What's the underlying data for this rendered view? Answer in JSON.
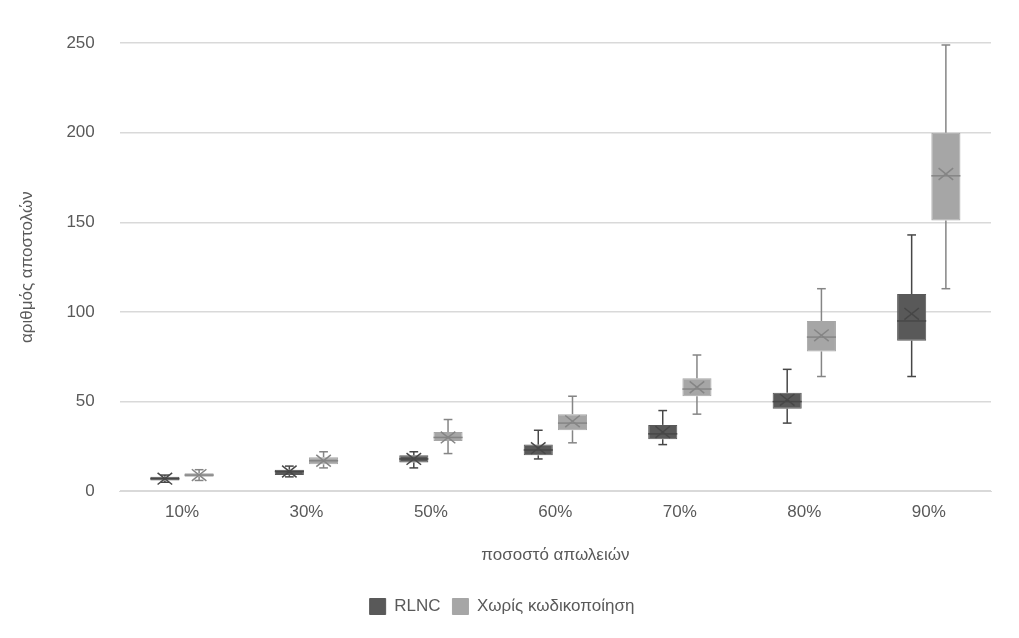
{
  "chart_data": {
    "type": "box",
    "xlabel": "ποσοστό απωλειών",
    "ylabel": "αριθμός αποστολών",
    "categories": [
      "10%",
      "30%",
      "50%",
      "60%",
      "70%",
      "80%",
      "90%"
    ],
    "ylim": [
      0,
      250
    ],
    "yticks": [
      0,
      50,
      100,
      150,
      200,
      250
    ],
    "grid": "y",
    "legend": "bottom",
    "series": [
      {
        "name": "RLNC",
        "color": "#595959",
        "boxes": [
          {
            "low": 5,
            "q1": 6,
            "median": 7,
            "q3": 8,
            "high": 9,
            "mean": 7
          },
          {
            "low": 8,
            "q1": 9,
            "median": 11,
            "q3": 12,
            "high": 14,
            "mean": 11
          },
          {
            "low": 13,
            "q1": 16,
            "median": 18,
            "q3": 20,
            "high": 22,
            "mean": 18
          },
          {
            "low": 18,
            "q1": 20,
            "median": 23,
            "q3": 26,
            "high": 34,
            "mean": 24
          },
          {
            "low": 26,
            "q1": 29,
            "median": 32,
            "q3": 37,
            "high": 45,
            "mean": 33
          },
          {
            "low": 38,
            "q1": 46,
            "median": 50,
            "q3": 55,
            "high": 68,
            "mean": 51
          },
          {
            "low": 64,
            "q1": 84,
            "median": 95,
            "q3": 110,
            "high": 143,
            "mean": 99
          }
        ]
      },
      {
        "name": "Χωρίς κωδικοποίηση",
        "color": "#a6a6a6",
        "boxes": [
          {
            "low": 6,
            "q1": 8,
            "median": 9,
            "q3": 10,
            "high": 12,
            "mean": 9
          },
          {
            "low": 13,
            "q1": 15,
            "median": 17,
            "q3": 19,
            "high": 22,
            "mean": 17
          },
          {
            "low": 21,
            "q1": 28,
            "median": 30,
            "q3": 33,
            "high": 40,
            "mean": 30
          },
          {
            "low": 27,
            "q1": 34,
            "median": 38,
            "q3": 43,
            "high": 53,
            "mean": 39
          },
          {
            "low": 43,
            "q1": 53,
            "median": 57,
            "q3": 63,
            "high": 76,
            "mean": 58
          },
          {
            "low": 64,
            "q1": 78,
            "median": 86,
            "q3": 95,
            "high": 113,
            "mean": 87
          },
          {
            "low": 113,
            "q1": 151,
            "median": 176,
            "q3": 200,
            "high": 249,
            "mean": 177
          }
        ]
      }
    ]
  }
}
